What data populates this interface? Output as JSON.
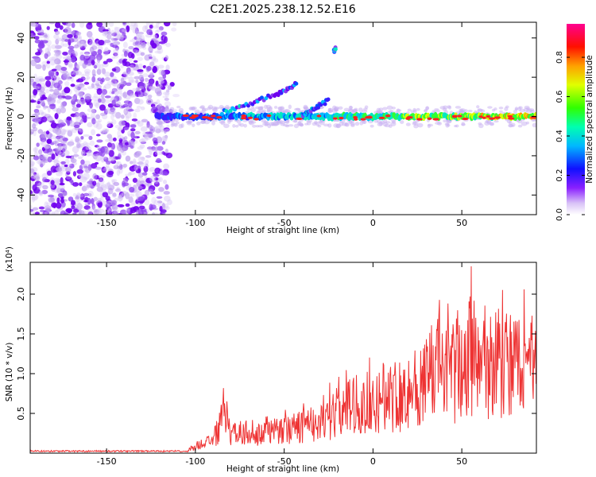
{
  "page": {
    "title": "C2E1.2025.238.12.52.E16"
  },
  "chart_data": [
    {
      "type": "heatmap",
      "name": "spectrogram",
      "xlabel": "Height of straight line (km)",
      "ylabel": "Frequency (Hz)",
      "xlim": [
        -193,
        92
      ],
      "ylim": [
        -50,
        48
      ],
      "xticks": [
        -150,
        -100,
        -50,
        0,
        50
      ],
      "yticks": [
        -40,
        -20,
        0,
        20,
        40
      ],
      "description_noise_region_x": [
        -193,
        -115
      ],
      "main_band": {
        "frequency": 0,
        "x_start": -122,
        "x_end": 92
      },
      "branch_segments": [
        {
          "x": [
            -85,
            -75,
            -65,
            -55,
            -48,
            -43
          ],
          "y": [
            2,
            5,
            8,
            11,
            14,
            17
          ]
        },
        {
          "x": [
            -40,
            -35,
            -30,
            -25
          ],
          "y": [
            0,
            3,
            6,
            8
          ]
        },
        {
          "x": [
            -22,
            -21
          ],
          "y": [
            33,
            35
          ]
        }
      ],
      "colorbar": {
        "label": "Normalized spectral amplitude",
        "range": [
          0,
          0.97
        ],
        "ticks": [
          0.0,
          0.2,
          0.4,
          0.6,
          0.8
        ],
        "tick_labels": [
          "0.0",
          "0.2",
          "0.4",
          "0.6",
          "0.8"
        ],
        "colormap": [
          "#ffffff",
          "#c8a8f0",
          "#7a00ff",
          "#0000ff",
          "#00c8ff",
          "#00ff80",
          "#40ff00",
          "#ffff00",
          "#ff8000",
          "#ff0000",
          "#ff0080"
        ]
      }
    },
    {
      "type": "line",
      "name": "snr",
      "xlabel": "Height of straight line (km)",
      "ylabel": "SNR (10 * v/v)",
      "yscale_label": "(x10⁴)",
      "xlim": [
        -193,
        92
      ],
      "ylim": [
        0,
        2.4
      ],
      "xticks": [
        -150,
        -100,
        -50,
        0,
        50
      ],
      "yticks": [
        0.5,
        1.0,
        1.5,
        2.0
      ],
      "ytick_labels": [
        "0.5",
        "1.0",
        "1.5",
        "2.0"
      ],
      "series": [
        {
          "name": "SNR",
          "color": "#ee3333",
          "x": [
            -193,
            -150,
            -105,
            -100,
            -90,
            -84,
            -80,
            -70,
            -60,
            -50,
            -40,
            -30,
            -20,
            -10,
            0,
            10,
            20,
            30,
            35,
            40,
            50,
            55,
            60,
            70,
            80,
            90,
            92
          ],
          "y": [
            0.02,
            0.02,
            0.03,
            0.12,
            0.22,
            0.62,
            0.3,
            0.38,
            0.34,
            0.4,
            0.45,
            0.6,
            0.7,
            0.85,
            0.9,
            1.0,
            1.1,
            1.2,
            1.5,
            1.35,
            1.55,
            1.75,
            1.6,
            1.55,
            1.45,
            1.6,
            1.3
          ]
        }
      ]
    }
  ],
  "colors": {
    "axis": "#000000",
    "snr_line": "#ee3333"
  }
}
